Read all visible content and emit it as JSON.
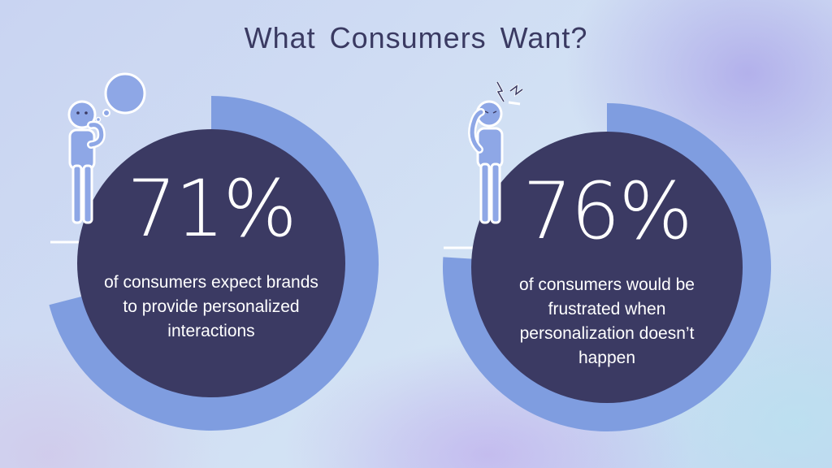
{
  "title": "What Consumers Want?",
  "colors": {
    "circle_fill": "#3b3a63",
    "ring": "#7f9de0",
    "figure": "#8ea7e6",
    "title_text": "#3a3a62"
  },
  "stats": [
    {
      "value": "71%",
      "description": "of consumers expect brands to provide personalized interactions",
      "ring_fill_percent": 71,
      "icon": "thinking-person-icon"
    },
    {
      "value": "76%",
      "description": "of consumers would be frustrated when personalization doesn’t happen",
      "ring_fill_percent": 76,
      "icon": "frustrated-person-icon"
    }
  ]
}
